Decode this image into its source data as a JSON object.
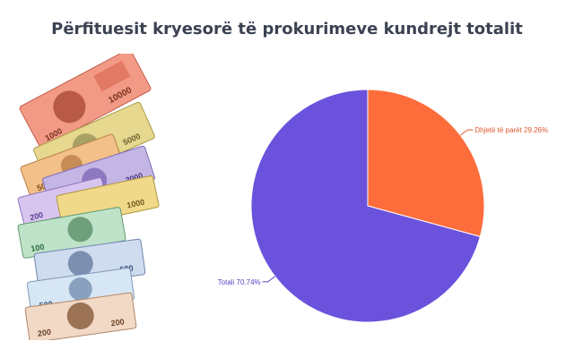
{
  "title": "Përfituesit kryesorë të prokurimeve kundrejt totalit",
  "banknotes": {
    "denominations": [
      "10000",
      "1000",
      "5000",
      "500",
      "2000",
      "200",
      "1000",
      "100",
      "500",
      "500",
      "200",
      "200"
    ]
  },
  "chart_data": {
    "type": "pie",
    "slices": [
      {
        "label": "Dhjetë të parët",
        "value": 29.26,
        "display": "Dhjetë të parët 29.26%",
        "color": "#fd6d3b"
      },
      {
        "label": "Totali",
        "value": 70.74,
        "display": "Totali 70.74%",
        "color": "#6b52dc"
      }
    ],
    "label_colors": {
      "Dhjetë të parët": "#e0562a",
      "Totali": "#5843c6"
    },
    "start_angle": "12 o'clock, clockwise",
    "legend": "none"
  }
}
